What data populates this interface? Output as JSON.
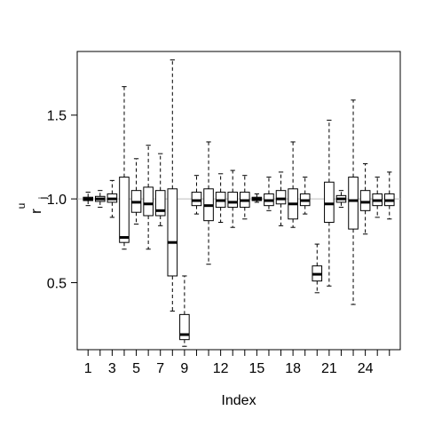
{
  "chart_data": {
    "type": "box",
    "xlabel": "Index",
    "ylabel_main": "r",
    "ylabel_sup": "u",
    "ylabel_sub": "j",
    "ylim": [
      0.1,
      1.88
    ],
    "x_tick_labels": [
      "1",
      "3",
      "5",
      "7",
      "9",
      "12",
      "15",
      "18",
      "21",
      "24"
    ],
    "x_tick_positions": [
      1,
      3,
      5,
      7,
      9,
      12,
      15,
      18,
      21,
      24
    ],
    "y_ticks": [
      0.5,
      1.0,
      1.5
    ],
    "y_tick_labels": [
      "0.5",
      "1.0",
      "1.5"
    ],
    "reference_line": 1.0,
    "reference_color": "#bebebe",
    "boxes": [
      {
        "index": 1,
        "whisker_low": 0.96,
        "q1": 0.99,
        "median": 1.0,
        "q3": 1.01,
        "whisker_high": 1.04
      },
      {
        "index": 2,
        "whisker_low": 0.95,
        "q1": 0.985,
        "median": 1.0,
        "q3": 1.015,
        "whisker_high": 1.05
      },
      {
        "index": 3,
        "whisker_low": 0.89,
        "q1": 0.98,
        "median": 1.0,
        "q3": 1.03,
        "whisker_high": 1.11
      },
      {
        "index": 4,
        "whisker_low": 0.7,
        "q1": 0.74,
        "median": 0.77,
        "q3": 1.13,
        "whisker_high": 1.67
      },
      {
        "index": 5,
        "whisker_low": 0.85,
        "q1": 0.92,
        "median": 0.98,
        "q3": 1.05,
        "whisker_high": 1.24
      },
      {
        "index": 6,
        "whisker_low": 0.7,
        "q1": 0.9,
        "median": 0.97,
        "q3": 1.07,
        "whisker_high": 1.32
      },
      {
        "index": 7,
        "whisker_low": 0.84,
        "q1": 0.9,
        "median": 0.93,
        "q3": 1.05,
        "whisker_high": 1.27
      },
      {
        "index": 8,
        "whisker_low": 0.33,
        "q1": 0.54,
        "median": 0.74,
        "q3": 1.06,
        "whisker_high": 1.83
      },
      {
        "index": 9,
        "whisker_low": 0.12,
        "q1": 0.16,
        "median": 0.19,
        "q3": 0.31,
        "whisker_high": 0.54
      },
      {
        "index": 10,
        "whisker_low": 0.91,
        "q1": 0.96,
        "median": 0.99,
        "q3": 1.04,
        "whisker_high": 1.14
      },
      {
        "index": 11,
        "whisker_low": 0.61,
        "q1": 0.87,
        "median": 0.96,
        "q3": 1.06,
        "whisker_high": 1.34
      },
      {
        "index": 12,
        "whisker_low": 0.86,
        "q1": 0.95,
        "median": 0.99,
        "q3": 1.04,
        "whisker_high": 1.15
      },
      {
        "index": 13,
        "whisker_low": 0.83,
        "q1": 0.95,
        "median": 0.98,
        "q3": 1.04,
        "whisker_high": 1.17
      },
      {
        "index": 14,
        "whisker_low": 0.88,
        "q1": 0.95,
        "median": 0.99,
        "q3": 1.04,
        "whisker_high": 1.14
      },
      {
        "index": 15,
        "whisker_low": 0.98,
        "q1": 0.99,
        "median": 1.0,
        "q3": 1.01,
        "whisker_high": 1.03
      },
      {
        "index": 16,
        "whisker_low": 0.93,
        "q1": 0.96,
        "median": 0.99,
        "q3": 1.03,
        "whisker_high": 1.13
      },
      {
        "index": 17,
        "whisker_low": 0.84,
        "q1": 0.97,
        "median": 1.0,
        "q3": 1.05,
        "whisker_high": 1.16
      },
      {
        "index": 18,
        "whisker_low": 0.83,
        "q1": 0.88,
        "median": 0.97,
        "q3": 1.06,
        "whisker_high": 1.34
      },
      {
        "index": 19,
        "whisker_low": 0.91,
        "q1": 0.96,
        "median": 0.99,
        "q3": 1.03,
        "whisker_high": 1.13
      },
      {
        "index": 20,
        "whisker_low": 0.44,
        "q1": 0.51,
        "median": 0.55,
        "q3": 0.6,
        "whisker_high": 0.73
      },
      {
        "index": 21,
        "whisker_low": 0.48,
        "q1": 0.86,
        "median": 0.97,
        "q3": 1.1,
        "whisker_high": 1.47
      },
      {
        "index": 22,
        "whisker_low": 0.95,
        "q1": 0.98,
        "median": 1.0,
        "q3": 1.02,
        "whisker_high": 1.05
      },
      {
        "index": 23,
        "whisker_low": 0.37,
        "q1": 0.82,
        "median": 0.99,
        "q3": 1.13,
        "whisker_high": 1.59
      },
      {
        "index": 24,
        "whisker_low": 0.79,
        "q1": 0.93,
        "median": 0.98,
        "q3": 1.05,
        "whisker_high": 1.21
      },
      {
        "index": 25,
        "whisker_low": 0.89,
        "q1": 0.96,
        "median": 0.99,
        "q3": 1.03,
        "whisker_high": 1.13
      },
      {
        "index": 26,
        "whisker_low": 0.88,
        "q1": 0.96,
        "median": 0.99,
        "q3": 1.03,
        "whisker_high": 1.16
      }
    ]
  }
}
